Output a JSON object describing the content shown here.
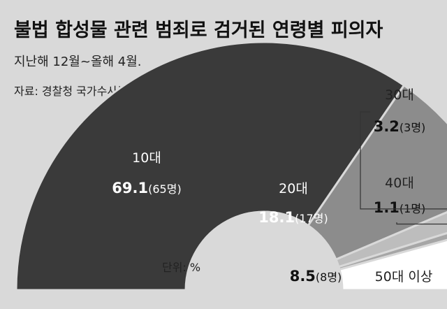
{
  "chart_data": {
    "type": "pie",
    "shape": "half-donut",
    "title": "불법 합성물 관련 범죄로 검거된 연령별 피의자",
    "subtitle": "지난해 12월~올해 4월.",
    "source": "자료: 경찰청 국가수사본부",
    "unit": "단위: %",
    "slices": [
      {
        "category": "10대",
        "value": 69.1,
        "value_text": "69.1",
        "count_text": "(65명)",
        "color": "#3a3a3a"
      },
      {
        "category": "20대",
        "value": 18.1,
        "value_text": "18.1",
        "count_text": "(17명)",
        "color": "#8c8c8c"
      },
      {
        "category": "30대",
        "value": 3.2,
        "value_text": "3.2",
        "count_text": "(3명)",
        "color": "#bdbdbd"
      },
      {
        "category": "40대",
        "value": 1.1,
        "value_text": "1.1",
        "count_text": "(1명)",
        "color": "#a6a6a6"
      },
      {
        "category": "50대 이상",
        "value": 8.5,
        "value_text": "8.5",
        "count_text": "(8명)",
        "color": "#ffffff"
      }
    ]
  }
}
